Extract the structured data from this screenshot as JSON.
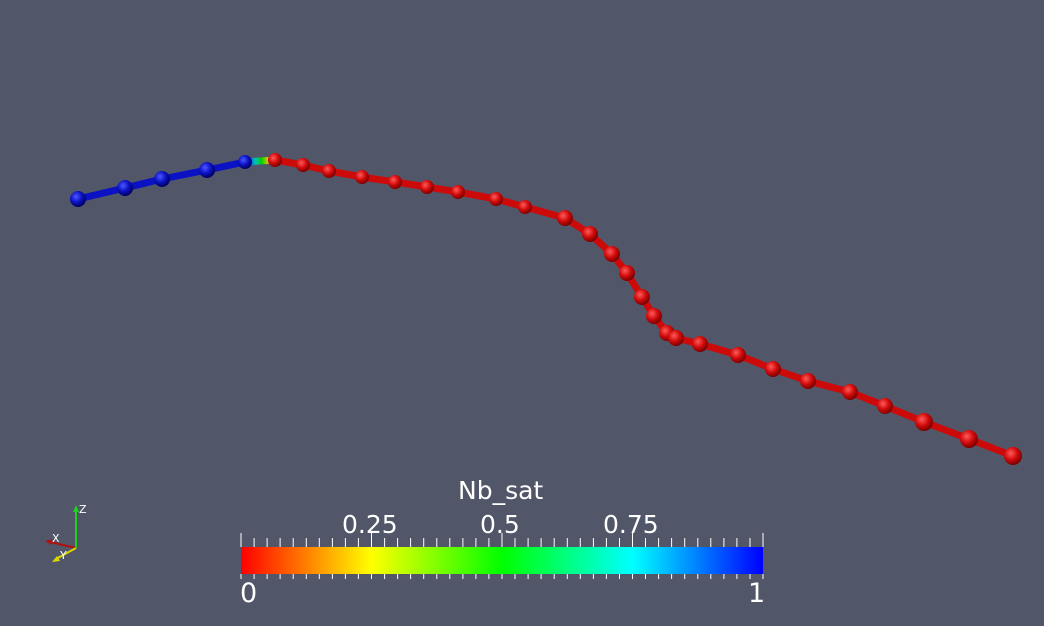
{
  "scene": {
    "background": "#525669",
    "polyline": {
      "points_blue_color": "#0a10b4",
      "points_red_color": "#cc0a0a"
    }
  },
  "color_legend": {
    "title": "Nb_sat",
    "ticks": [
      "0.25",
      "0.5",
      "0.75"
    ],
    "min_label": "0",
    "max_label": "1",
    "gradient_colors": [
      "#ff0000",
      "#ffff00",
      "#00ff00",
      "#00ffff",
      "#0000ff"
    ]
  },
  "orientation_axes": {
    "x": "X",
    "y": "Y",
    "z": "Z"
  }
}
